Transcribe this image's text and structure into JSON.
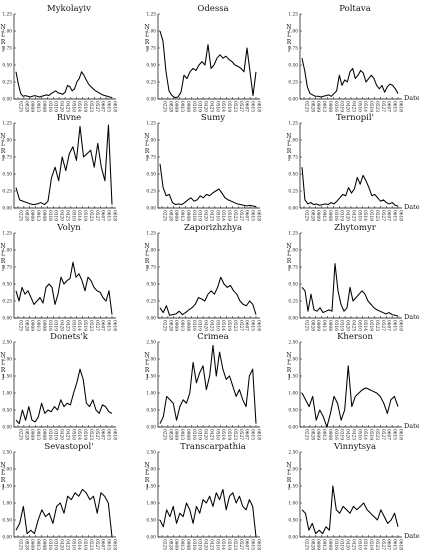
{
  "chart_data": [
    {
      "type": "line",
      "title": "Mykolayiv",
      "ylabel": "N L R I",
      "xlabel": "",
      "ylim": [
        0,
        1.25
      ],
      "yticks": [
        "0.00",
        "0.25",
        "0.50",
        "0.75",
        "1.00",
        "1.25"
      ],
      "values": [
        0.4,
        0.22,
        0.08,
        0.04,
        0.05,
        0.04,
        0.03,
        0.04,
        0.05,
        0.04,
        0.03,
        0.04,
        0.05,
        0.06,
        0.05,
        0.08,
        0.1,
        0.12,
        0.09,
        0.08,
        0.07,
        0.1,
        0.2,
        0.18,
        0.12,
        0.15,
        0.25,
        0.3,
        0.4,
        0.35,
        0.28,
        0.22,
        0.18,
        0.15,
        0.12,
        0.1,
        0.08,
        0.06,
        0.05,
        0.04,
        0.03,
        0.02
      ]
    },
    {
      "type": "line",
      "title": "Odessa",
      "ylabel": "N L R I",
      "xlabel": "",
      "ylim": [
        0,
        1.25
      ],
      "yticks": [
        "0.00",
        "0.25",
        "0.50",
        "0.75",
        "1.00",
        "1.25"
      ],
      "values": [
        1.0,
        0.85,
        0.4,
        0.12,
        0.05,
        0.02,
        0.03,
        0.1,
        0.35,
        0.3,
        0.4,
        0.45,
        0.42,
        0.5,
        0.55,
        0.5,
        0.8,
        0.45,
        0.5,
        0.6,
        0.65,
        0.6,
        0.63,
        0.58,
        0.55,
        0.5,
        0.48,
        0.45,
        0.4,
        0.75,
        0.4,
        0.05,
        0.4
      ]
    },
    {
      "type": "line",
      "title": "Poltava",
      "ylabel": "N L R I",
      "xlabel": "Date",
      "ylim": [
        0,
        1.25
      ],
      "yticks": [
        "0.00",
        "0.25",
        "0.50",
        "0.75",
        "1.00",
        "1.25"
      ],
      "values": [
        0.6,
        0.42,
        0.18,
        0.08,
        0.06,
        0.04,
        0.04,
        0.03,
        0.04,
        0.05,
        0.06,
        0.04,
        0.08,
        0.12,
        0.35,
        0.2,
        0.28,
        0.25,
        0.4,
        0.45,
        0.3,
        0.35,
        0.42,
        0.38,
        0.25,
        0.3,
        0.35,
        0.3,
        0.2,
        0.15,
        0.2,
        0.1,
        0.18,
        0.22,
        0.2,
        0.15,
        0.08
      ]
    },
    {
      "type": "line",
      "title": "Rivne",
      "ylabel": "N L R I",
      "xlabel": "",
      "ylim": [
        0,
        1.25
      ],
      "yticks": [
        "0.00",
        "0.25",
        "0.50",
        "0.75",
        "1.00",
        "1.25"
      ],
      "values": [
        0.3,
        0.12,
        0.1,
        0.08,
        0.06,
        0.05,
        0.06,
        0.08,
        0.05,
        0.1,
        0.45,
        0.6,
        0.4,
        0.75,
        0.55,
        0.8,
        0.9,
        0.7,
        1.2,
        0.75,
        0.8,
        0.85,
        0.6,
        0.95,
        0.6,
        0.4,
        1.22,
        0.05
      ]
    },
    {
      "type": "line",
      "title": "Sumy",
      "ylabel": "N L R I",
      "xlabel": "",
      "ylim": [
        0,
        1.25
      ],
      "yticks": [
        "0.00",
        "0.25",
        "0.50",
        "0.75",
        "1.00",
        "1.25"
      ],
      "values": [
        0.65,
        0.3,
        0.18,
        0.2,
        0.08,
        0.05,
        0.06,
        0.05,
        0.08,
        0.12,
        0.15,
        0.1,
        0.12,
        0.18,
        0.15,
        0.2,
        0.18,
        0.22,
        0.25,
        0.28,
        0.22,
        0.15,
        0.12,
        0.1,
        0.08,
        0.06,
        0.05,
        0.04,
        0.03,
        0.04,
        0.03,
        0.02
      ]
    },
    {
      "type": "line",
      "title": "Ternopil'",
      "ylabel": "N L R I",
      "xlabel": "Date",
      "ylim": [
        0,
        1.25
      ],
      "yticks": [
        "0.00",
        "0.25",
        "0.50",
        "0.75",
        "1.00",
        "1.25"
      ],
      "values": [
        0.6,
        0.12,
        0.06,
        0.08,
        0.05,
        0.06,
        0.04,
        0.05,
        0.06,
        0.05,
        0.08,
        0.06,
        0.1,
        0.15,
        0.2,
        0.18,
        0.3,
        0.22,
        0.28,
        0.45,
        0.35,
        0.48,
        0.4,
        0.3,
        0.18,
        0.2,
        0.15,
        0.1,
        0.12,
        0.08,
        0.06,
        0.08,
        0.04,
        0.03
      ]
    },
    {
      "type": "line",
      "title": "Volyn",
      "ylabel": "N L R I",
      "xlabel": "",
      "ylim": [
        0,
        1.25
      ],
      "yticks": [
        "0.00",
        "0.25",
        "0.50",
        "0.75",
        "1.00",
        "1.25"
      ],
      "values": [
        0.4,
        0.25,
        0.45,
        0.35,
        0.4,
        0.3,
        0.2,
        0.25,
        0.3,
        0.22,
        0.45,
        0.5,
        0.45,
        0.2,
        0.35,
        0.6,
        0.5,
        0.55,
        0.58,
        0.82,
        0.6,
        0.65,
        0.55,
        0.4,
        0.6,
        0.55,
        0.45,
        0.4,
        0.38,
        0.3,
        0.25,
        0.4,
        0.05
      ]
    },
    {
      "type": "line",
      "title": "Zaporizhzhya",
      "ylabel": "N L R I",
      "xlabel": "",
      "ylim": [
        0,
        1.25
      ],
      "yticks": [
        "0.00",
        "0.25",
        "0.50",
        "0.75",
        "1.00",
        "1.25"
      ],
      "values": [
        0.15,
        0.08,
        0.18,
        0.04,
        0.05,
        0.06,
        0.1,
        0.05,
        0.08,
        0.12,
        0.15,
        0.2,
        0.3,
        0.28,
        0.25,
        0.35,
        0.4,
        0.35,
        0.45,
        0.6,
        0.5,
        0.45,
        0.48,
        0.4,
        0.35,
        0.25,
        0.2,
        0.18,
        0.25,
        0.2,
        0.05
      ]
    },
    {
      "type": "line",
      "title": "Zhytomyr",
      "ylabel": "N L R I",
      "xlabel": "Date",
      "ylim": [
        0,
        1.25
      ],
      "yticks": [
        "0.00",
        "0.25",
        "0.50",
        "0.75",
        "1.00",
        "1.25"
      ],
      "values": [
        0.45,
        0.4,
        0.1,
        0.35,
        0.12,
        0.1,
        0.15,
        0.08,
        0.1,
        0.12,
        0.1,
        0.8,
        0.4,
        0.2,
        0.1,
        0.15,
        0.45,
        0.25,
        0.3,
        0.35,
        0.4,
        0.35,
        0.25,
        0.2,
        0.15,
        0.12,
        0.1,
        0.08,
        0.06,
        0.08,
        0.05,
        0.04,
        0.03
      ]
    },
    {
      "type": "line",
      "title": "Donets'k",
      "ylabel": "N L R I",
      "xlabel": "",
      "ylim": [
        0,
        2.5
      ],
      "yticks": [
        "0.00",
        "0.50",
        "1.00",
        "1.50",
        "2.00",
        "2.50"
      ],
      "values": [
        0.2,
        0.1,
        0.5,
        0.2,
        0.6,
        0.2,
        0.15,
        0.3,
        0.7,
        0.4,
        0.5,
        0.45,
        0.6,
        0.5,
        0.8,
        0.6,
        0.7,
        0.65,
        1.0,
        1.3,
        1.7,
        1.4,
        0.7,
        0.6,
        0.8,
        0.5,
        0.4,
        0.65,
        0.6,
        0.45,
        0.4
      ]
    },
    {
      "type": "line",
      "title": "Crimea",
      "ylabel": "N L R I",
      "xlabel": "",
      "ylim": [
        0,
        2.5
      ],
      "yticks": [
        "0.00",
        "0.50",
        "1.00",
        "1.50",
        "2.00",
        "2.50"
      ],
      "values": [
        0.1,
        0.3,
        0.9,
        0.8,
        0.7,
        0.2,
        0.6,
        0.8,
        0.7,
        1.0,
        1.9,
        1.3,
        1.6,
        1.8,
        1.1,
        1.5,
        2.4,
        1.5,
        2.2,
        1.7,
        1.4,
        1.5,
        1.2,
        0.9,
        1.1,
        0.8,
        0.6,
        1.5,
        1.7,
        0.1
      ]
    },
    {
      "type": "line",
      "title": "Kherson",
      "ylabel": "N L R I",
      "xlabel": "Date",
      "ylim": [
        0,
        2.5
      ],
      "yticks": [
        "0.00",
        "0.50",
        "1.00",
        "1.50",
        "2.00",
        "2.50"
      ],
      "values": [
        1.0,
        0.8,
        0.6,
        0.9,
        0.2,
        0.5,
        0.3,
        0.0,
        0.4,
        0.9,
        0.7,
        0.2,
        0.5,
        1.8,
        0.6,
        0.9,
        1.0,
        1.1,
        1.15,
        1.1,
        1.05,
        1.0,
        0.9,
        0.7,
        0.4,
        0.8,
        0.9,
        0.6
      ]
    },
    {
      "type": "line",
      "title": "Sevastopol'",
      "ylabel": "N L R I",
      "xlabel": "",
      "ylim": [
        0,
        2.5
      ],
      "yticks": [
        "0.00",
        "0.50",
        "1.00",
        "1.50",
        "2.00",
        "2.50"
      ],
      "values": [
        0.2,
        0.4,
        0.9,
        0.1,
        0.2,
        0.1,
        0.5,
        0.8,
        0.6,
        0.7,
        0.4,
        0.9,
        1.0,
        0.7,
        1.2,
        1.1,
        1.3,
        1.2,
        1.4,
        1.3,
        1.1,
        1.2,
        0.7,
        1.3,
        1.2,
        1.0,
        0.0
      ]
    },
    {
      "type": "line",
      "title": "Transcarpathia",
      "ylabel": "N L R I",
      "xlabel": "",
      "ylim": [
        0,
        2.5
      ],
      "yticks": [
        "0.00",
        "0.50",
        "1.00",
        "1.50",
        "2.00",
        "2.50"
      ],
      "values": [
        0.5,
        0.3,
        0.8,
        0.6,
        0.9,
        0.4,
        0.7,
        0.6,
        1.0,
        0.8,
        0.4,
        0.9,
        0.7,
        1.1,
        1.0,
        1.2,
        0.9,
        1.3,
        1.1,
        1.4,
        0.8,
        1.2,
        1.3,
        1.0,
        1.2,
        0.9,
        0.8,
        1.1,
        0.9,
        0.0
      ]
    },
    {
      "type": "line",
      "title": "Vinnytsya",
      "ylabel": "N L R I",
      "xlabel": "Date",
      "ylim": [
        0,
        2.5
      ],
      "yticks": [
        "0.00",
        "0.50",
        "1.00",
        "1.50",
        "2.00",
        "2.50"
      ],
      "values": [
        0.8,
        0.7,
        0.2,
        0.4,
        0.1,
        0.2,
        0.1,
        0.3,
        0.2,
        1.5,
        0.8,
        0.7,
        0.9,
        0.8,
        0.7,
        0.9,
        0.8,
        0.9,
        1.0,
        0.8,
        0.7,
        0.6,
        0.5,
        0.8,
        0.6,
        0.4,
        0.5,
        0.7,
        0.3
      ]
    }
  ],
  "x_tick_labels": [
    "0225",
    "0828",
    "0909",
    "0913",
    "0908",
    "0316",
    "0319",
    "0420",
    "0423",
    "0510",
    "0514",
    "0519",
    "0523",
    "0527",
    "0607",
    "0615",
    "0618"
  ]
}
